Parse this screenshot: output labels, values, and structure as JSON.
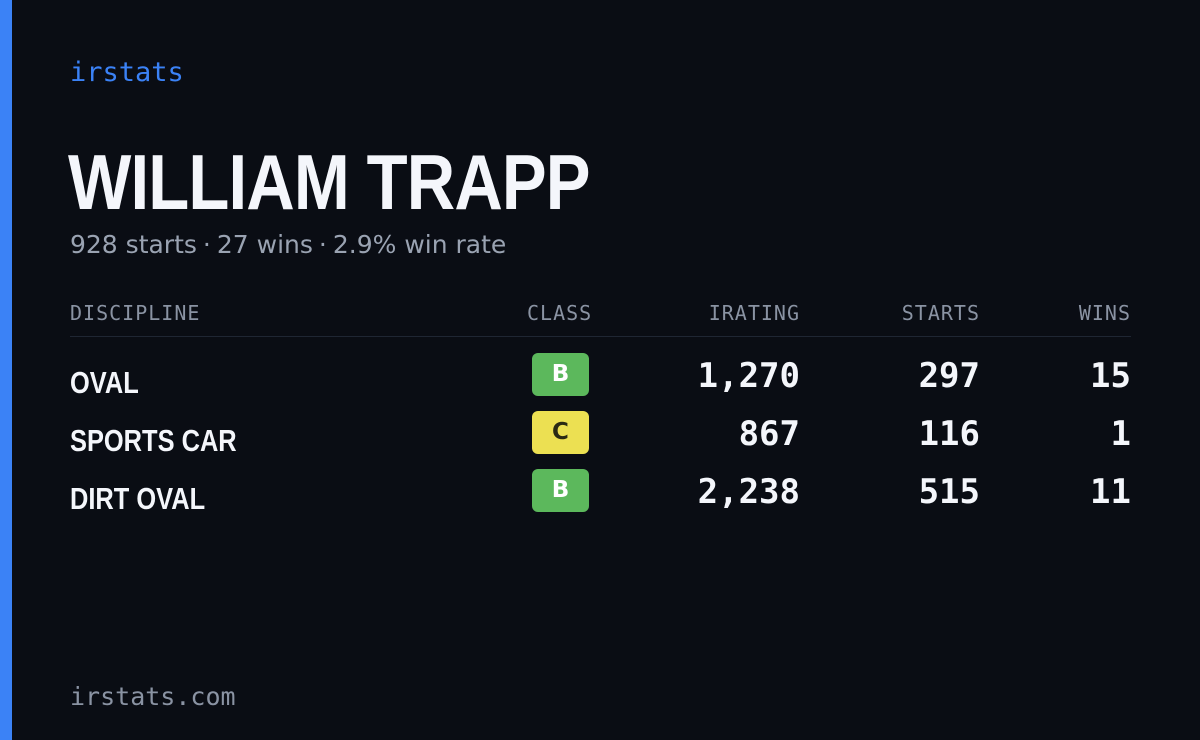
{
  "brand": "irstats",
  "driver": {
    "name": "WILLIAM TRAPP"
  },
  "summary": {
    "starts": "928 starts",
    "wins": "27 wins",
    "win_rate": "2.9% win rate",
    "separator": "·"
  },
  "table": {
    "headers": {
      "discipline": "DISCIPLINE",
      "class": "CLASS",
      "irating": "IRATING",
      "starts": "STARTS",
      "wins": "WINS"
    },
    "rows": [
      {
        "discipline": "OVAL",
        "class": "B",
        "irating": "1,270",
        "starts": "297",
        "wins": "15"
      },
      {
        "discipline": "SPORTS CAR",
        "class": "C",
        "irating": "867",
        "starts": "116",
        "wins": "1"
      },
      {
        "discipline": "DIRT OVAL",
        "class": "B",
        "irating": "2,238",
        "starts": "515",
        "wins": "11"
      }
    ]
  },
  "colors": {
    "background": "#0a0d14",
    "accent": "#3b82f6",
    "class_b": "#5cb85c",
    "class_c": "#ece052",
    "muted_text": "#9aa3b2"
  },
  "footer": {
    "url": "irstats.com"
  }
}
